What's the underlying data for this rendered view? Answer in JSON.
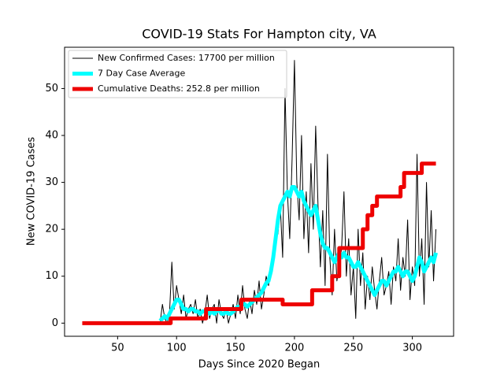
{
  "chart_data": {
    "type": "line",
    "title": "COVID-19 Stats For Hampton city, VA",
    "xlabel": "Days Since 2020 Began",
    "ylabel": "New COVID-19 Cases",
    "xlim": [
      5,
      335
    ],
    "ylim": [
      -2.8,
      58.8
    ],
    "xticks": [
      50,
      100,
      150,
      200,
      250,
      300
    ],
    "yticks": [
      0,
      10,
      20,
      30,
      40,
      50
    ],
    "legend": "upper left",
    "x": [
      86,
      88,
      90,
      92,
      94,
      96,
      98,
      100,
      102,
      104,
      106,
      108,
      110,
      112,
      114,
      116,
      118,
      120,
      122,
      124,
      126,
      128,
      130,
      132,
      134,
      136,
      138,
      140,
      142,
      144,
      146,
      148,
      150,
      152,
      154,
      156,
      158,
      160,
      162,
      164,
      166,
      168,
      170,
      172,
      174,
      176,
      178,
      180,
      182,
      184,
      186,
      188,
      190,
      192,
      194,
      196,
      198,
      200,
      202,
      204,
      206,
      208,
      210,
      212,
      214,
      216,
      218,
      220,
      222,
      224,
      226,
      228,
      230,
      232,
      234,
      236,
      238,
      240,
      242,
      244,
      246,
      248,
      250,
      252,
      254,
      256,
      258,
      260,
      262,
      264,
      266,
      268,
      270,
      272,
      274,
      276,
      278,
      280,
      282,
      284,
      286,
      288,
      290,
      292,
      294,
      296,
      298,
      300,
      302,
      304,
      306,
      308,
      310,
      312,
      314,
      316,
      318,
      320
    ],
    "series": [
      {
        "name": "New Confirmed Cases: 17700 per million",
        "color": "#000000",
        "width": 1,
        "values": [
          0,
          4,
          1,
          0,
          2,
          13,
          3,
          8,
          5,
          2,
          6,
          1,
          3,
          4,
          2,
          5,
          1,
          3,
          0,
          2,
          6,
          1,
          3,
          4,
          0,
          5,
          2,
          1,
          3,
          0,
          2,
          4,
          1,
          6,
          2,
          8,
          3,
          1,
          5,
          2,
          7,
          4,
          9,
          3,
          6,
          10,
          8,
          12,
          15,
          20,
          19,
          25,
          14,
          50,
          28,
          18,
          35,
          56,
          30,
          22,
          40,
          18,
          28,
          15,
          34,
          20,
          42,
          25,
          12,
          24,
          8,
          36,
          14,
          6,
          20,
          9,
          12,
          16,
          28,
          10,
          18,
          6,
          12,
          1,
          20,
          8,
          15,
          3,
          10,
          5,
          12,
          7,
          3,
          9,
          14,
          6,
          8,
          11,
          4,
          12,
          9,
          18,
          7,
          14,
          10,
          22,
          5,
          12,
          8,
          36,
          10,
          18,
          4,
          30,
          12,
          24,
          9,
          20
        ]
      },
      {
        "name": "7 Day Case Average",
        "color": "#00ffff",
        "width": 5,
        "values": [
          0.5,
          1,
          1.5,
          1,
          2,
          3,
          4,
          5,
          5,
          4,
          3,
          3,
          2.5,
          3,
          3,
          2.5,
          2.5,
          2,
          2.5,
          2.5,
          3,
          2,
          2.5,
          2,
          2.5,
          3,
          2,
          2,
          2.5,
          2,
          2,
          2.5,
          3,
          3.5,
          3.5,
          4,
          4,
          3.5,
          4,
          4.5,
          5,
          5.5,
          6,
          6.5,
          7.5,
          8.5,
          9,
          11,
          14,
          18,
          22,
          25,
          26,
          27,
          28,
          27,
          29,
          29,
          28,
          27,
          28,
          26,
          25,
          24,
          23,
          24,
          25,
          22,
          19,
          17,
          16,
          16,
          15,
          14,
          13,
          14,
          15,
          14,
          15,
          14,
          14,
          13,
          12,
          12,
          13,
          12,
          11,
          10,
          9,
          8,
          7,
          6,
          7,
          8,
          9,
          9,
          8,
          9,
          10,
          11,
          11,
          12,
          11,
          10,
          11,
          11,
          10,
          9,
          10,
          12,
          14,
          13,
          11,
          12,
          13,
          14,
          13,
          15
        ]
      },
      {
        "name": "Cumulative Deaths: 252.8 per million",
        "color": "#ee0000",
        "width": 5,
        "x": [
          20,
          95,
          95,
          125,
          125,
          155,
          155,
          190,
          190,
          215,
          215,
          232,
          232,
          238,
          238,
          258,
          258,
          262,
          262,
          266,
          266,
          270,
          270,
          290,
          290,
          293,
          293,
          308,
          308,
          320
        ],
        "values": [
          0,
          0,
          1,
          1,
          3,
          3,
          5,
          5,
          4,
          4,
          7,
          7,
          10,
          10,
          16,
          16,
          20,
          20,
          23,
          23,
          25,
          25,
          27,
          27,
          29,
          29,
          32,
          32,
          34,
          34
        ]
      }
    ]
  }
}
